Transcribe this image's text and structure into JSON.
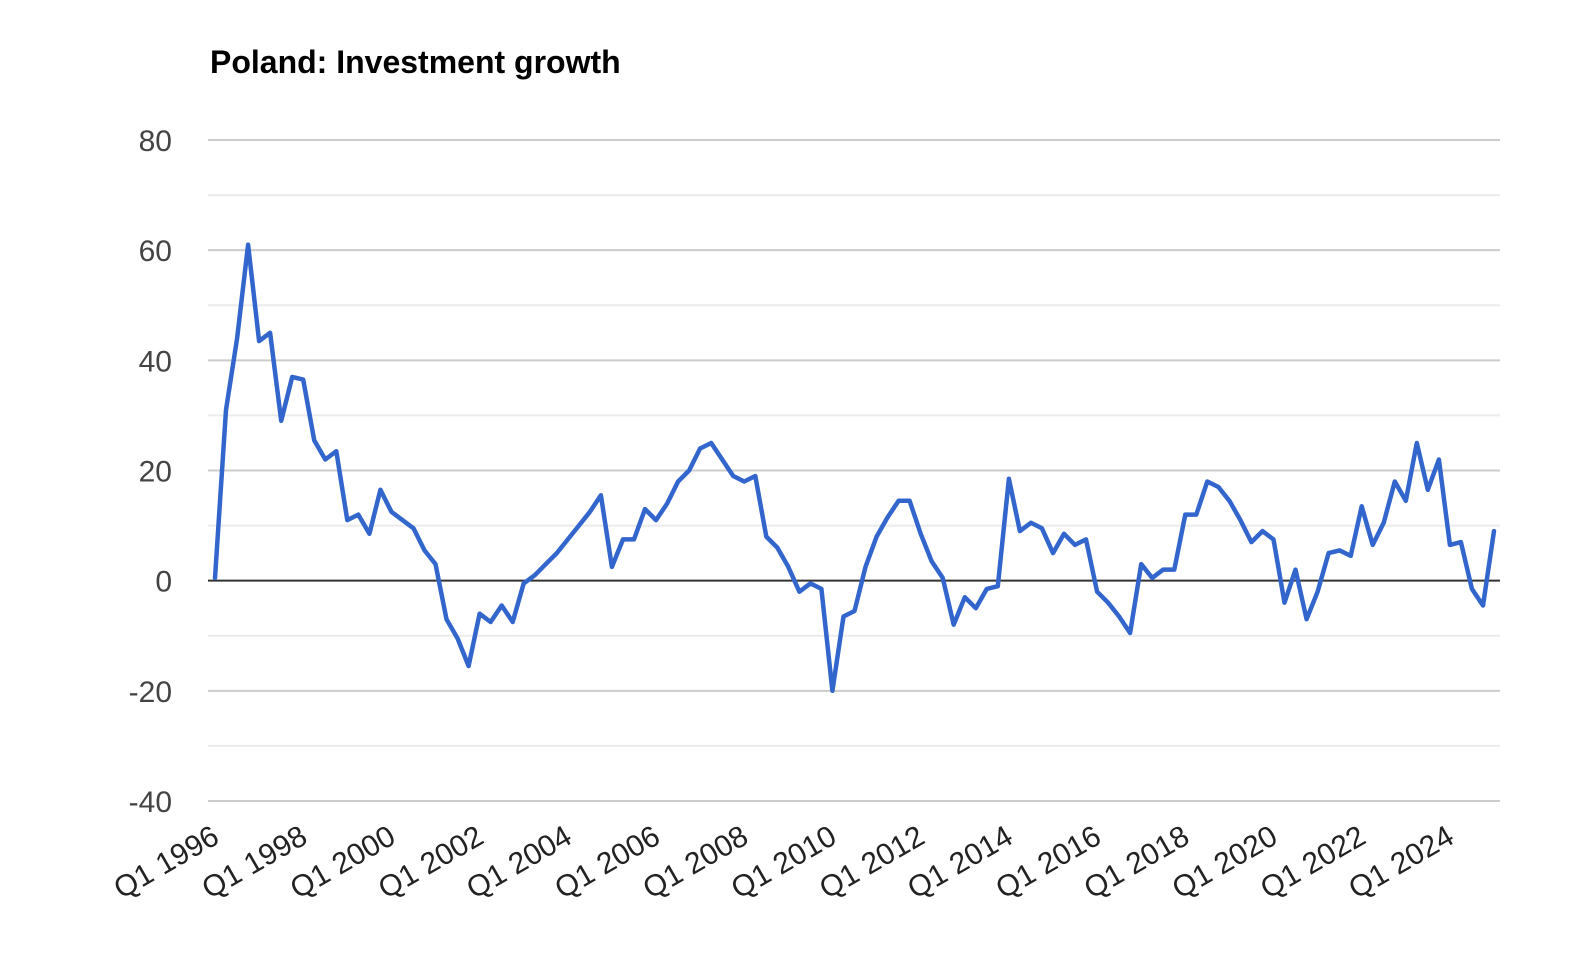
{
  "chart_data": {
    "type": "line",
    "title": "Poland: Investment growth",
    "xlabel": "",
    "ylabel": "",
    "ylim": [
      -40,
      80
    ],
    "yticks": [
      80,
      60,
      40,
      20,
      0,
      -20,
      -40
    ],
    "ytick_labels": [
      "80",
      "60",
      "40",
      "20",
      "0",
      "-20",
      "-40"
    ],
    "xtick_labels": [
      "Q1 1996",
      "Q1 1998",
      "Q1 2000",
      "Q1 2002",
      "Q1 2004",
      "Q1 2006",
      "Q1 2008",
      "Q1 2010",
      "Q1 2012",
      "Q1 2014",
      "Q1 2016",
      "Q1 2018",
      "Q1 2020",
      "Q1 2022",
      "Q1 2024"
    ],
    "x_start": "Q1 1996",
    "x_end": "Q4 2024",
    "grid": true,
    "legend": "none",
    "color": "#3366cc",
    "series": [
      {
        "values": [
          0.5,
          31,
          44,
          61,
          43.5,
          45,
          29,
          37,
          36.5,
          25.5,
          22,
          23.5,
          11,
          12,
          8.5,
          16.5,
          12.5,
          11,
          9.5,
          5.5,
          3,
          -7,
          -10.5,
          -15.5,
          -6,
          -7.5,
          -4.5,
          -7.5,
          -0.5,
          1,
          3,
          5,
          7.5,
          10,
          12.5,
          15.5,
          2.5,
          7.5,
          7.5,
          13,
          11,
          14,
          18,
          20,
          24,
          25,
          22,
          19,
          18,
          19,
          8,
          6,
          2.5,
          -2,
          -0.5,
          -1.5,
          -20,
          -6.5,
          -5.5,
          2.5,
          8,
          11.5,
          14.5,
          14.5,
          8.5,
          3.5,
          0.5,
          -8,
          -3,
          -5,
          -1.5,
          -1,
          18.5,
          9,
          10.5,
          9.5,
          5,
          8.5,
          6.5,
          7.5,
          -2,
          -4,
          -6.5,
          -9.5,
          3,
          0.5,
          2,
          2,
          12,
          12,
          18,
          17,
          14.5,
          11,
          7,
          9,
          7.5,
          -4,
          2,
          -7,
          -2,
          5,
          5.5,
          4.5,
          13.5,
          6.5,
          10.5,
          18,
          14.5,
          25,
          16.5,
          22,
          6.5,
          7,
          -1.5,
          -4.5,
          9
        ]
      }
    ]
  }
}
